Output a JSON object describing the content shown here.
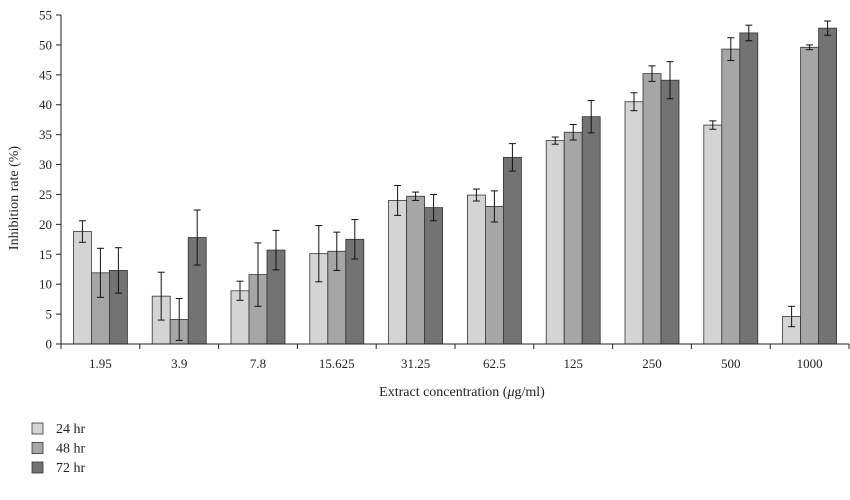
{
  "chart_data": {
    "type": "bar",
    "xlabel_prefix": "Extract concentration (",
    "xlabel_unit_italic": "μ",
    "xlabel_suffix": "g/ml)",
    "ylabel": "Inhibition rate (%)",
    "ylim": [
      0,
      55
    ],
    "yticks": [
      "0",
      "5",
      "10",
      "15",
      "20",
      "25",
      "30",
      "35",
      "40",
      "45",
      "50",
      "55"
    ],
    "categories": [
      "1.95",
      "3.9",
      "7.8",
      "15.625",
      "31.25",
      "62.5",
      "125",
      "250",
      "500",
      "1000"
    ],
    "grid": false,
    "legend_position": "bottom-left",
    "series": [
      {
        "name": "24 hr",
        "color": "#d4d4d4",
        "values": [
          18.8,
          8.0,
          8.9,
          15.1,
          24.0,
          24.9,
          34.0,
          40.5,
          36.6,
          4.6
        ],
        "errors": [
          1.8,
          4.0,
          1.6,
          4.7,
          2.5,
          1.0,
          0.6,
          1.5,
          0.7,
          1.7
        ]
      },
      {
        "name": "48 hr",
        "color": "#a6a6a6",
        "values": [
          11.9,
          4.1,
          11.6,
          15.5,
          24.7,
          23.0,
          35.4,
          45.2,
          49.3,
          49.6
        ],
        "errors": [
          4.1,
          3.5,
          5.3,
          3.2,
          0.7,
          2.6,
          1.3,
          1.3,
          1.9,
          0.4
        ]
      },
      {
        "name": "72 hr",
        "color": "#737373",
        "values": [
          12.3,
          17.8,
          15.7,
          17.5,
          22.8,
          31.2,
          38.0,
          44.1,
          52.0,
          52.8
        ],
        "errors": [
          3.8,
          4.6,
          3.3,
          3.3,
          2.2,
          2.3,
          2.7,
          3.1,
          1.3,
          1.2
        ]
      }
    ]
  }
}
